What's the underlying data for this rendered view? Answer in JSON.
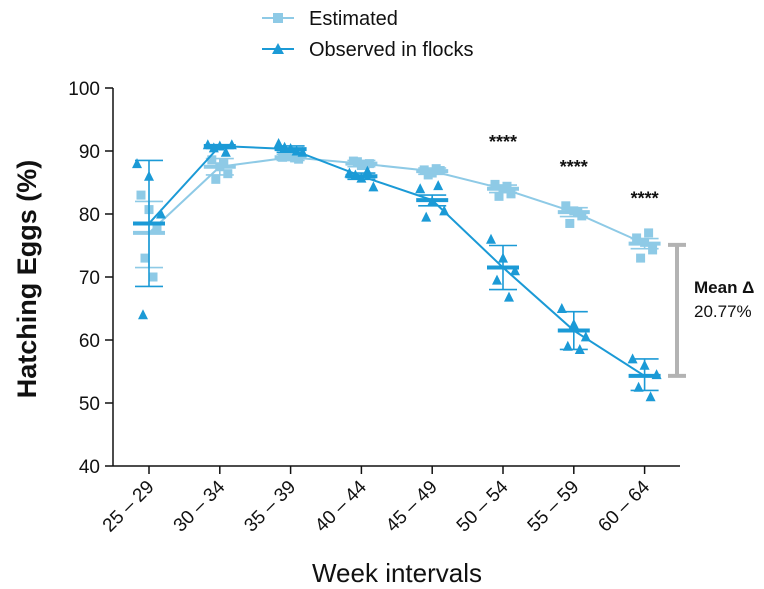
{
  "chart_data": {
    "type": "scatter",
    "title": "",
    "xlabel": "Week intervals",
    "ylabel": "Hatching Eggs (%)",
    "ylim": [
      40,
      100
    ],
    "yticks": [
      40,
      50,
      60,
      70,
      80,
      90,
      100
    ],
    "categories": [
      "25 – 29",
      "30 – 34",
      "35 – 39",
      "40 – 44",
      "45 – 49",
      "50 – 54",
      "55 – 59",
      "60 – 64"
    ],
    "legend": {
      "position": "top-center"
    },
    "series": [
      {
        "name": "Estimated",
        "color": "#8ecae6",
        "marker": "square",
        "mean": [
          77.0,
          87.5,
          89.0,
          88.0,
          86.8,
          84.0,
          80.3,
          75.3
        ],
        "sd_upper": [
          82.0,
          88.8,
          89.5,
          88.5,
          87.3,
          84.6,
          81.0,
          76.1
        ],
        "sd_lower": [
          71.5,
          86.2,
          88.5,
          87.5,
          86.3,
          83.4,
          79.6,
          74.5
        ],
        "points": [
          [
            83.0,
            80.7,
            77.5,
            73.0,
            70.0
          ],
          [
            88.6,
            87.5,
            86.4,
            85.5,
            88.0
          ],
          [
            89.0,
            89.4,
            88.7,
            89.1,
            88.9
          ],
          [
            88.4,
            87.7,
            88.0,
            88.3,
            87.9
          ],
          [
            87.0,
            86.5,
            86.9,
            86.2,
            87.2
          ],
          [
            84.7,
            84.0,
            83.2,
            82.8,
            84.4
          ],
          [
            81.3,
            80.5,
            79.7,
            78.5,
            80.2
          ],
          [
            76.2,
            75.5,
            74.3,
            73.0,
            77.0
          ]
        ]
      },
      {
        "name": "Observed in flocks",
        "color": "#1b9ad6",
        "marker": "triangle",
        "mean": [
          78.5,
          90.8,
          90.3,
          86.0,
          82.2,
          71.5,
          61.5,
          54.3
        ],
        "sd_upper": [
          88.5,
          91.0,
          90.8,
          86.5,
          83.0,
          75.0,
          64.5,
          57.0
        ],
        "sd_lower": [
          68.5,
          90.4,
          89.8,
          85.5,
          81.3,
          68.0,
          58.5,
          52.0
        ],
        "points": [
          [
            88.0,
            86.0,
            80.0,
            64.0
          ],
          [
            91.0,
            90.8,
            91.0,
            90.5,
            89.8
          ],
          [
            91.2,
            90.4,
            89.8,
            90.6,
            90.0
          ],
          [
            86.5,
            85.7,
            84.3,
            86.2,
            86.8
          ],
          [
            84.0,
            82.0,
            80.5,
            79.5,
            84.5
          ],
          [
            76.0,
            73.0,
            71.0,
            69.5,
            66.8
          ],
          [
            65.0,
            62.5,
            60.5,
            59.0,
            58.5
          ],
          [
            57.0,
            56.0,
            54.5,
            52.5,
            51.0
          ]
        ]
      }
    ],
    "significance": [
      {
        "category_index": 5,
        "label": "****",
        "y": 90.5
      },
      {
        "category_index": 6,
        "label": "****",
        "y": 86.5
      },
      {
        "category_index": 7,
        "label": "****",
        "y": 81.5
      }
    ],
    "mean_delta": {
      "title": "Mean Δ",
      "value": "20.77%",
      "upper": 75.1,
      "lower": 54.3,
      "color": "#b3b3b3"
    }
  }
}
